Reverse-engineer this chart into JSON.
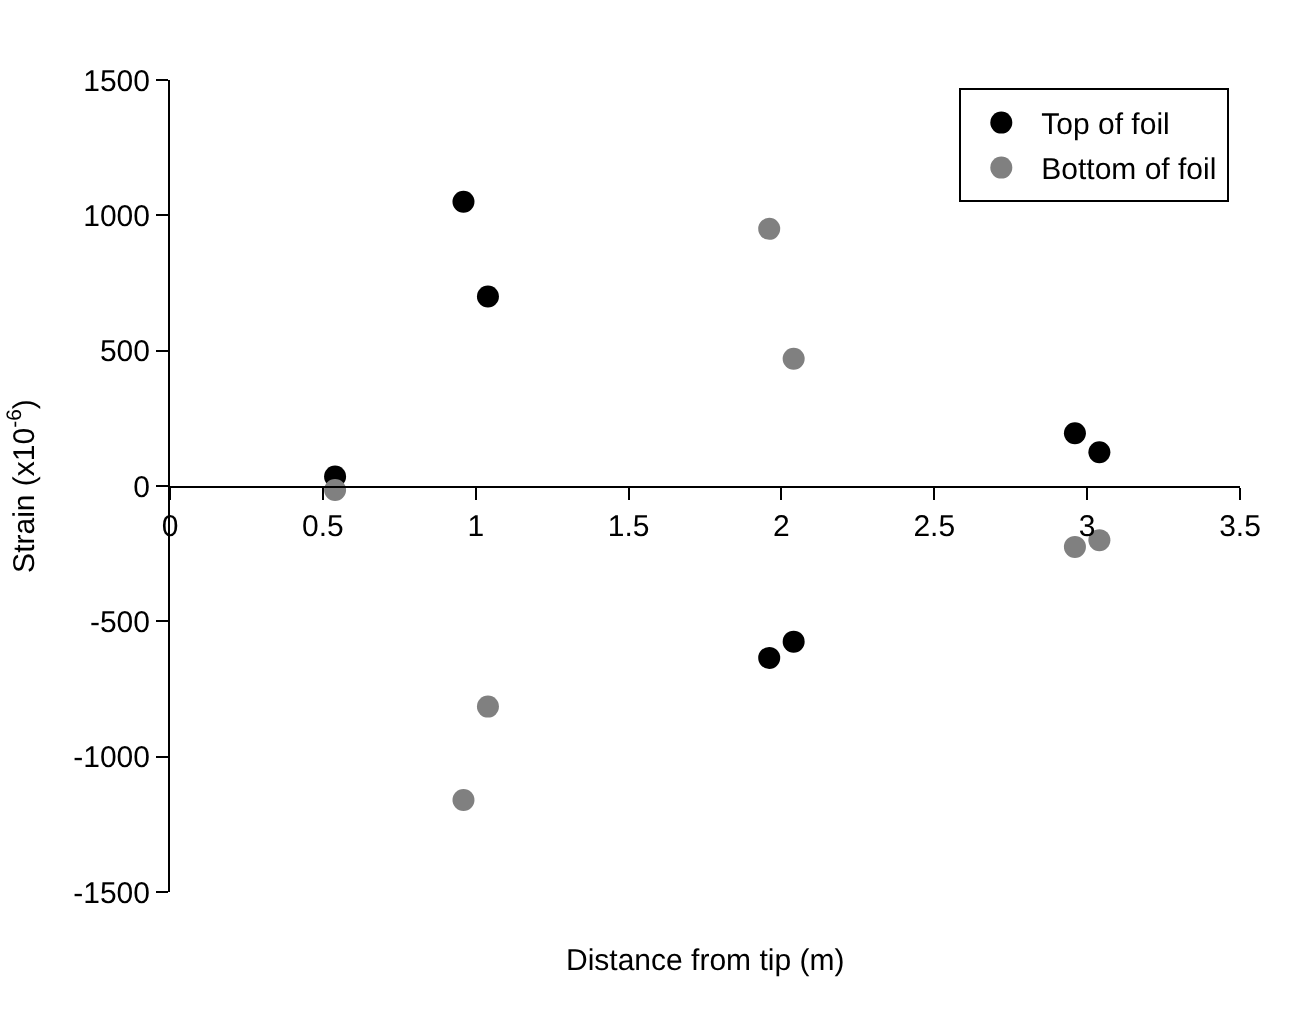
{
  "chart_data": {
    "type": "scatter",
    "xlabel": "Distance from tip (m)",
    "ylabel": "Strain (x10$^{-6}$)",
    "xlim": [
      0,
      3.5
    ],
    "xticks": [
      0,
      0.5,
      1,
      1.5,
      2,
      2.5,
      3,
      3.5
    ],
    "ylim": [
      -1500,
      1500
    ],
    "yticks": [
      -1500,
      -1000,
      -500,
      0,
      500,
      1000,
      1500
    ],
    "legend": "top right",
    "marker": "circle",
    "series": [
      {
        "name": "Top of foil",
        "color": "#000000",
        "x": [
          0.54,
          0.96,
          1.04,
          1.96,
          2.04,
          2.96,
          3.04
        ],
        "values": [
          35,
          1050,
          700,
          -635,
          -575,
          195,
          125
        ]
      },
      {
        "name": "Bottom of foil",
        "color": "#808080",
        "x": [
          0.54,
          0.96,
          1.04,
          1.96,
          2.04,
          2.96,
          3.04
        ],
        "values": [
          -15,
          -1160,
          -815,
          950,
          470,
          -225,
          -200
        ]
      }
    ]
  }
}
